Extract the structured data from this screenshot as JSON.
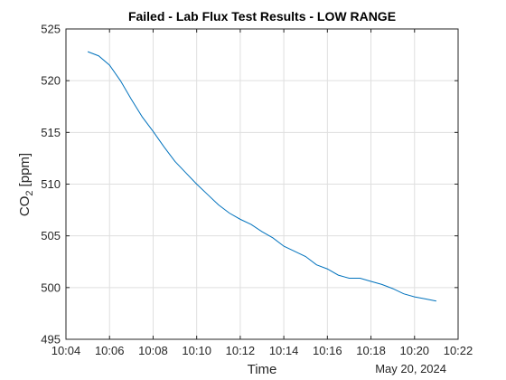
{
  "chart_data": {
    "type": "line",
    "title": "Failed - Lab Flux Test Results - LOW RANGE",
    "xlabel": "Time",
    "ylabel_main": "CO",
    "ylabel_sub": "2",
    "ylabel_unit": "[ppm]",
    "date_label": "May 20, 2024",
    "x_ticks": [
      "10:04",
      "10:06",
      "10:08",
      "10:10",
      "10:12",
      "10:14",
      "10:16",
      "10:18",
      "10:20",
      "10:22"
    ],
    "y_ticks": [
      "495",
      "500",
      "505",
      "510",
      "515",
      "520",
      "525"
    ],
    "xlim": [
      "10:04",
      "10:22"
    ],
    "ylim": [
      495,
      525
    ],
    "grid": true,
    "line_color": "#0072BD",
    "series": [
      {
        "x": [
          "10:05:00",
          "10:05:30",
          "10:06:00",
          "10:06:30",
          "10:07:00",
          "10:07:30",
          "10:08:00",
          "10:08:30",
          "10:09:00",
          "10:09:30",
          "10:10:00",
          "10:10:30",
          "10:11:00",
          "10:11:30",
          "10:12:00",
          "10:12:30",
          "10:13:00",
          "10:13:30",
          "10:14:00",
          "10:14:30",
          "10:15:00",
          "10:15:30",
          "10:16:00",
          "10:16:30",
          "10:17:00",
          "10:17:30",
          "10:18:00",
          "10:18:30",
          "10:19:00",
          "10:19:30",
          "10:20:00",
          "10:20:30",
          "10:21:00"
        ],
        "y": [
          522.8,
          522.4,
          521.5,
          520.0,
          518.2,
          516.5,
          515.1,
          513.6,
          512.2,
          511.1,
          510.0,
          509.0,
          508.0,
          507.2,
          506.6,
          506.1,
          505.4,
          504.8,
          504.0,
          503.5,
          503.0,
          502.2,
          501.8,
          501.2,
          500.9,
          500.9,
          500.6,
          500.3,
          499.9,
          499.4,
          499.1,
          498.9,
          498.7
        ]
      }
    ]
  }
}
